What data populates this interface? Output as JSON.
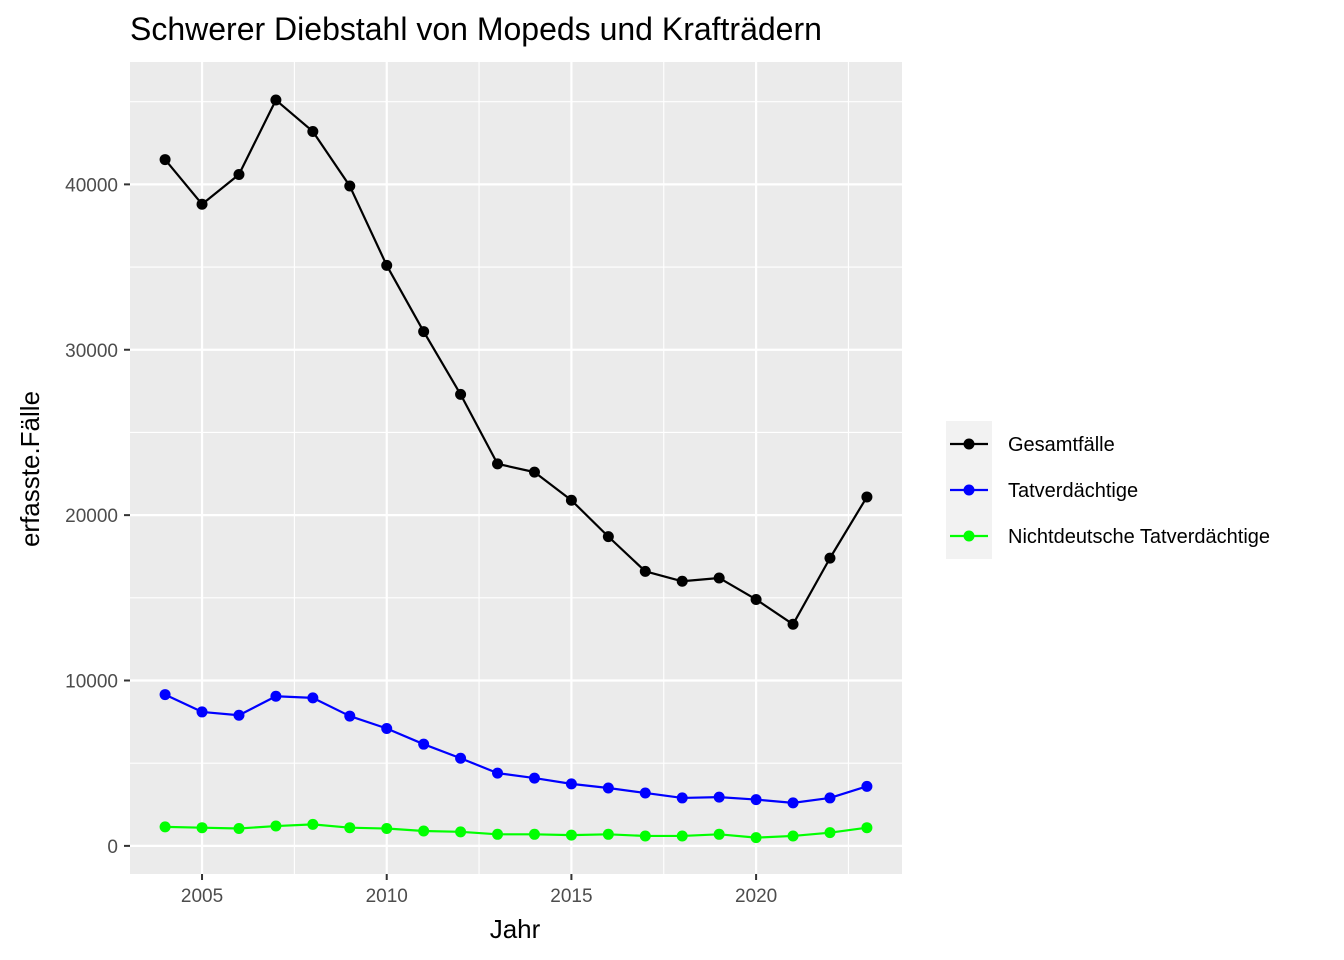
{
  "chart_data": {
    "type": "line",
    "title": "Schwerer Diebstahl von Mopeds und Krafträdern",
    "xlabel": "Jahr",
    "ylabel": "erfasste.Fälle",
    "xlim": [
      2003.05,
      2023.95
    ],
    "ylim": [
      -1700,
      47400
    ],
    "x_ticks": [
      2005,
      2010,
      2015,
      2020
    ],
    "y_ticks": [
      0,
      10000,
      20000,
      30000,
      40000
    ],
    "grid": true,
    "legend_position": "right",
    "x": [
      2004,
      2005,
      2006,
      2007,
      2008,
      2009,
      2010,
      2011,
      2012,
      2013,
      2014,
      2015,
      2016,
      2017,
      2018,
      2019,
      2020,
      2021,
      2022,
      2023
    ],
    "series": [
      {
        "name": "Gesamtfälle",
        "color": "#000000",
        "values": [
          41500,
          38800,
          40600,
          45100,
          43200,
          39900,
          35100,
          31100,
          27300,
          23100,
          22600,
          20900,
          18700,
          16600,
          16000,
          16200,
          14900,
          13400,
          17400,
          21100
        ]
      },
      {
        "name": "Tatverdächtige",
        "color": "#0000ff",
        "values": [
          9150,
          8100,
          7900,
          9050,
          8950,
          7850,
          7100,
          6150,
          5300,
          4400,
          4100,
          3750,
          3500,
          3200,
          2900,
          2950,
          2800,
          2600,
          2900,
          3600
        ]
      },
      {
        "name": "Nichtdeutsche Tatverdächtige",
        "color": "#00ff00",
        "values": [
          1150,
          1100,
          1050,
          1200,
          1300,
          1100,
          1050,
          900,
          850,
          700,
          700,
          650,
          700,
          600,
          600,
          700,
          500,
          600,
          800,
          1100
        ]
      }
    ]
  }
}
